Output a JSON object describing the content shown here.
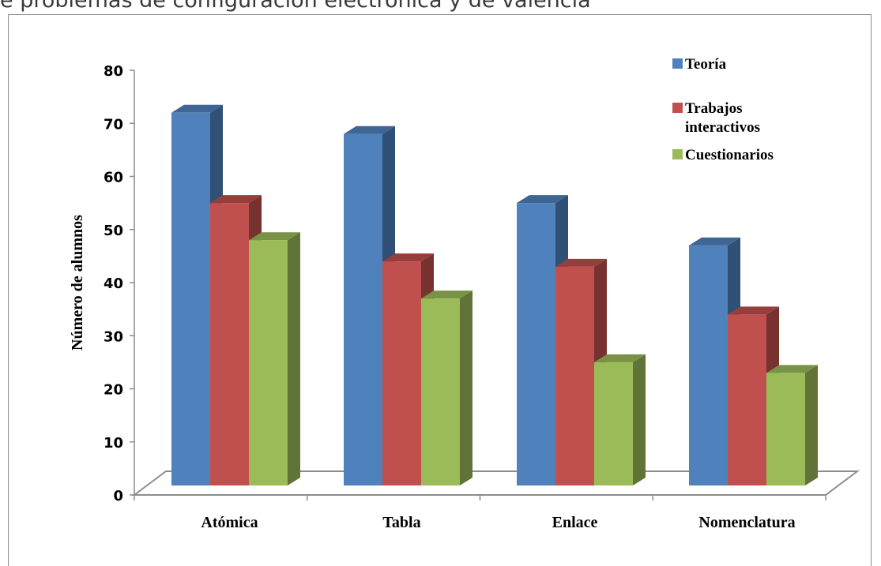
{
  "top_text": "e problemas de configuración electrónica y de valencia",
  "chart_data": {
    "type": "bar",
    "title": "",
    "xlabel": "",
    "ylabel": "Número de alumnos",
    "ylim": [
      0,
      80
    ],
    "yticks": [
      0,
      10,
      20,
      30,
      40,
      50,
      60,
      70,
      80
    ],
    "categories": [
      "Atómica",
      "Tabla",
      "Enlace",
      "Nomenclatura"
    ],
    "series": [
      {
        "name": "Teoría",
        "values": [
          72,
          68,
          55,
          47
        ],
        "color": "#4f81bd"
      },
      {
        "name": "Trabajos interactivos",
        "values": [
          55,
          44,
          43,
          34
        ],
        "color": "#c0504d"
      },
      {
        "name": "Cuestionarios",
        "values": [
          48,
          37,
          25,
          23
        ],
        "color": "#9bbb59"
      }
    ],
    "legend_position": "top-right",
    "grid": false,
    "style": "3d-column"
  }
}
